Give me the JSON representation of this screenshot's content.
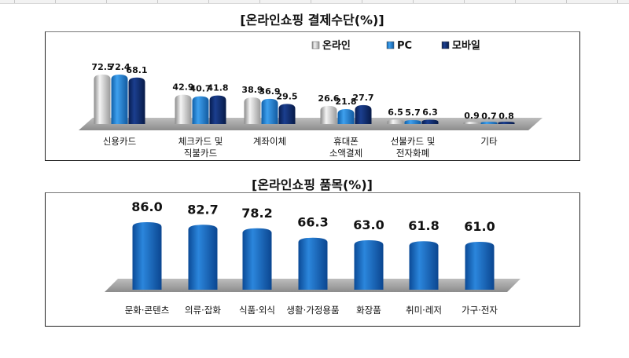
{
  "chart_data": [
    {
      "type": "bar",
      "title": "[온라인쇼핑  결제수단(%)]",
      "categories": [
        "신용카드",
        "체크카드 및\n직불카드",
        "계좌이체",
        "휴대폰\n소액결제",
        "선불카드 및\n전자화폐",
        "기타"
      ],
      "series": [
        {
          "name": "온라인",
          "color": "#c8c8c8",
          "values": [
            72.5,
            42.9,
            38.9,
            26.6,
            6.5,
            0.9
          ]
        },
        {
          "name": "PC",
          "color": "#1f7fd0",
          "values": [
            72.4,
            40.7,
            36.9,
            21.8,
            5.7,
            0.7
          ]
        },
        {
          "name": "모바일",
          "color": "#0d2a6e",
          "values": [
            68.1,
            41.8,
            29.5,
            27.7,
            6.3,
            0.8
          ]
        }
      ],
      "legend": "top-right",
      "xlabel": "",
      "ylabel": "",
      "ylim": [
        0,
        80
      ]
    },
    {
      "type": "bar",
      "title": "[온라인쇼핑  품목(%)]",
      "categories": [
        "문화·콘텐츠",
        "의류·잡화",
        "식품·외식",
        "생활·가정용품",
        "화장품",
        "취미·레저",
        "가구·전자"
      ],
      "values": [
        86.0,
        82.7,
        78.2,
        66.3,
        63.0,
        61.8,
        61.0
      ],
      "color": "#1565c0",
      "xlabel": "",
      "ylabel": "",
      "ylim": [
        0,
        90
      ]
    }
  ]
}
